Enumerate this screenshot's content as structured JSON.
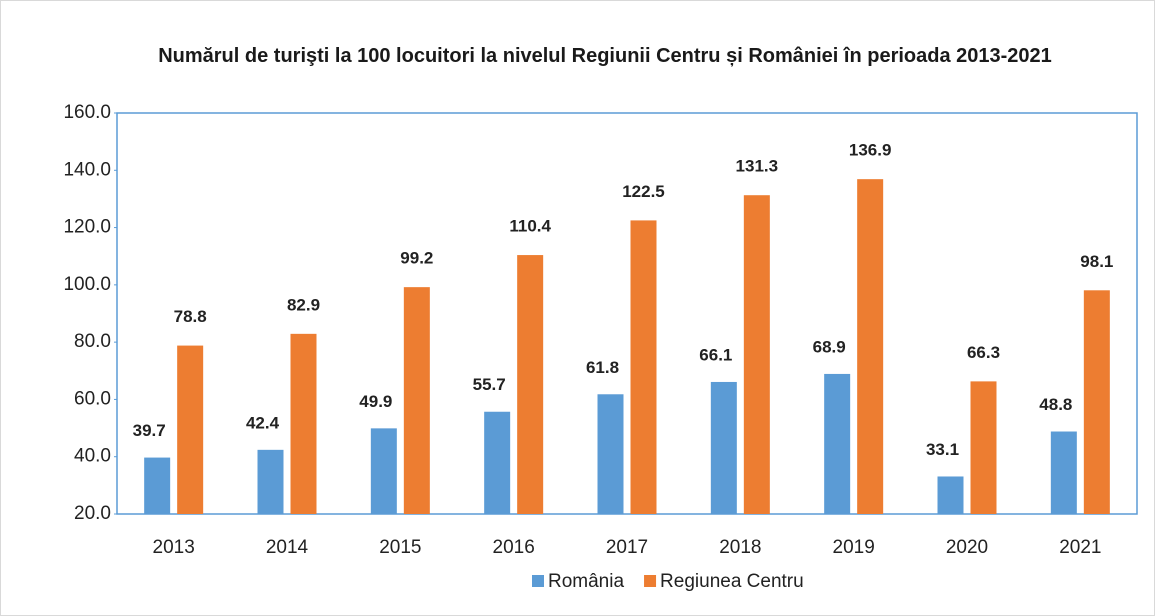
{
  "chart_data": {
    "type": "bar",
    "title": "Numărul de turişti la 100 locuitori la nivelul Regiunii Centru și României în perioada 2013-2021",
    "categories": [
      "2013",
      "2014",
      "2015",
      "2016",
      "2017",
      "2018",
      "2019",
      "2020",
      "2021"
    ],
    "series": [
      {
        "name": "România",
        "color": "#5b9bd5",
        "label_color": "#1f1fe6",
        "values": [
          39.7,
          42.4,
          49.9,
          55.7,
          61.8,
          66.1,
          68.9,
          33.1,
          48.8
        ]
      },
      {
        "name": "Regiunea Centru",
        "color": "#ed7d31",
        "label_color": "#ff0000",
        "values": [
          78.8,
          82.9,
          99.2,
          110.4,
          122.5,
          131.3,
          136.9,
          66.3,
          98.1
        ]
      }
    ],
    "ylim": [
      20,
      160
    ],
    "yticks": [
      {
        "value": 20,
        "label": "20.0"
      },
      {
        "value": 40,
        "label": "40.0"
      },
      {
        "value": 60,
        "label": "60.0"
      },
      {
        "value": 80,
        "label": "80.0"
      },
      {
        "value": 100,
        "label": "100.0"
      },
      {
        "value": 120,
        "label": "120.0"
      },
      {
        "value": 140,
        "label": "140.0"
      },
      {
        "value": 160,
        "label": "160.0"
      }
    ],
    "legend": "bottom"
  }
}
